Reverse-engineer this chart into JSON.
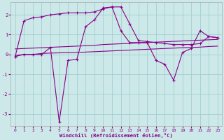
{
  "xlabel": "Windchill (Refroidissement éolien,°C)",
  "x": [
    0,
    1,
    2,
    3,
    4,
    5,
    6,
    7,
    8,
    9,
    10,
    11,
    12,
    13,
    14,
    15,
    16,
    17,
    18,
    19,
    20,
    21,
    22,
    23
  ],
  "y_upper": [
    -0.1,
    1.7,
    1.85,
    1.9,
    2.0,
    2.05,
    2.1,
    2.1,
    2.1,
    2.15,
    2.3,
    2.4,
    2.4,
    1.55,
    0.7,
    0.65,
    0.6,
    0.55,
    0.5,
    0.5,
    0.5,
    0.55,
    0.9,
    0.85
  ],
  "y_wind": [
    -0.1,
    0.0,
    0.0,
    0.0,
    0.35,
    -3.4,
    -0.3,
    -0.25,
    1.4,
    1.75,
    2.35,
    2.4,
    1.2,
    0.6,
    0.6,
    0.6,
    -0.3,
    -0.5,
    -1.3,
    0.1,
    0.3,
    1.2,
    0.9,
    0.85
  ],
  "y_flat1": [
    -0.05,
    0.0,
    0.0,
    0.05,
    0.07,
    0.08,
    0.09,
    0.1,
    0.12,
    0.14,
    0.16,
    0.18,
    0.2,
    0.22,
    0.24,
    0.26,
    0.28,
    0.3,
    0.32,
    0.34,
    0.35,
    0.37,
    0.4,
    0.42
  ],
  "y_flat2": [
    0.28,
    0.3,
    0.32,
    0.34,
    0.36,
    0.38,
    0.4,
    0.42,
    0.44,
    0.46,
    0.5,
    0.52,
    0.54,
    0.56,
    0.58,
    0.6,
    0.62,
    0.64,
    0.66,
    0.68,
    0.7,
    0.72,
    0.74,
    0.76
  ],
  "bg_color": "#cce8e8",
  "line_color": "#880088",
  "grid_color": "#99cccc",
  "ylim": [
    -3.6,
    2.65
  ],
  "yticks": [
    -3,
    -2,
    -1,
    0,
    1,
    2
  ],
  "xticks": [
    0,
    1,
    2,
    3,
    4,
    5,
    6,
    7,
    8,
    9,
    10,
    11,
    12,
    13,
    14,
    15,
    16,
    17,
    18,
    19,
    20,
    21,
    22,
    23
  ]
}
